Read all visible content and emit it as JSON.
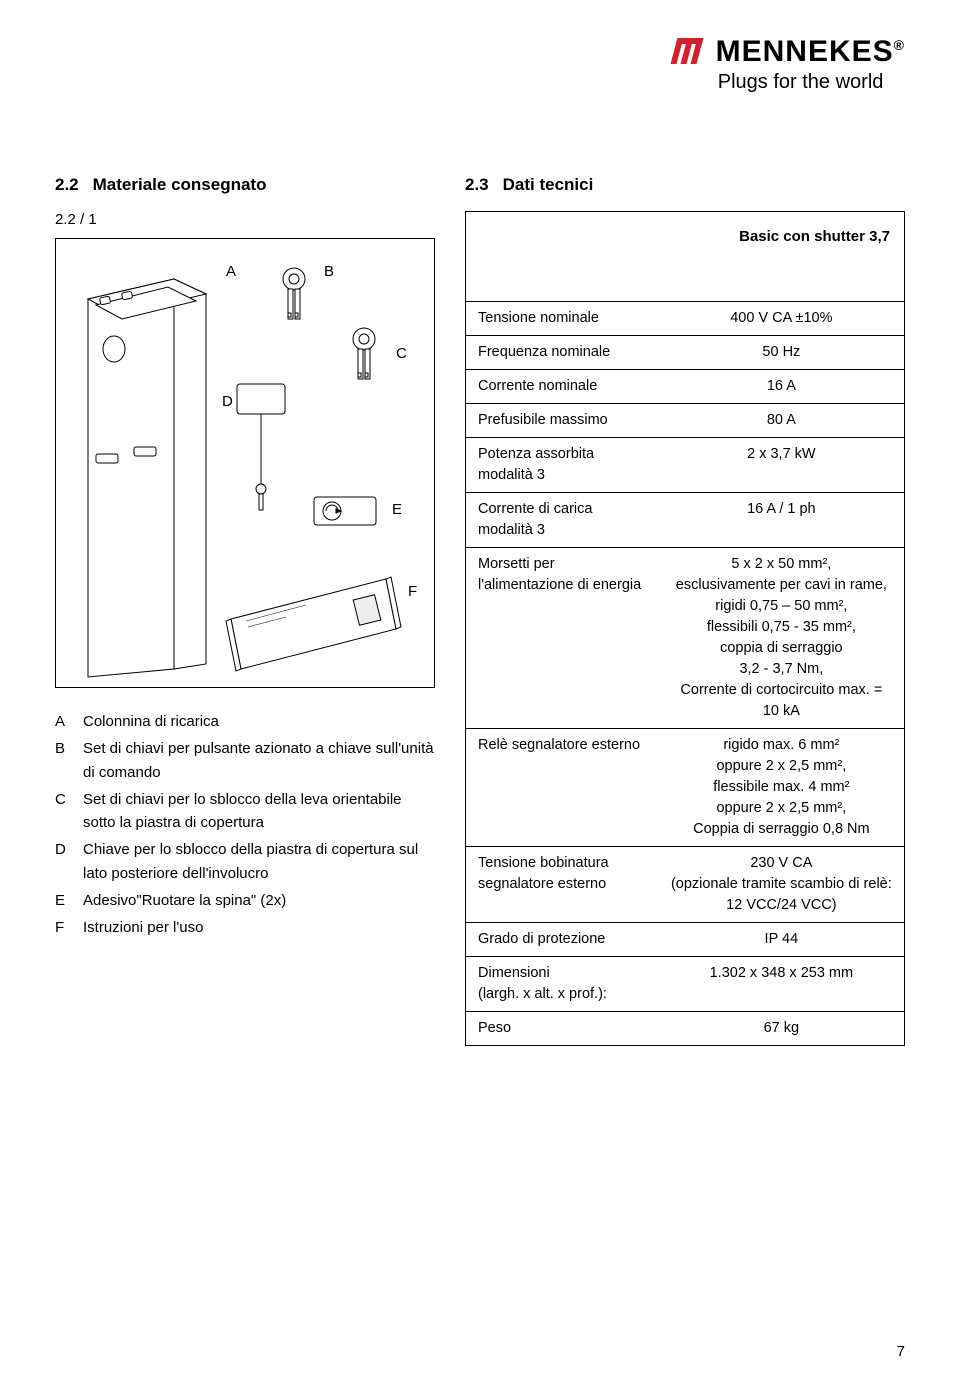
{
  "brand": {
    "name": "MENNEKES",
    "tagline": "Plugs for the world",
    "logo_color": "#d3202c"
  },
  "sections": {
    "left_num": "2.2",
    "left_title": "Materiale consegnato",
    "left_sub": "2.2 / 1",
    "right_num": "2.3",
    "right_title": "Dati tecnici"
  },
  "callouts": {
    "A": "A",
    "B": "B",
    "C": "C",
    "D": "D",
    "E": "E",
    "F": "F"
  },
  "legend": [
    {
      "key": "A",
      "text": "Colonnina di ricarica"
    },
    {
      "key": "B",
      "text": "Set di chiavi per pulsante azionato a chiave sull'unità di comando"
    },
    {
      "key": "C",
      "text": "Set di chiavi per lo sblocco della leva orientabile sotto la piastra di copertura"
    },
    {
      "key": "D",
      "text": "Chiave per lo sblocco della piastra di copertura sul lato posteriore dell'involucro"
    },
    {
      "key": "E",
      "text": "Adesivo\"Ruotare la spina\" (2x)"
    },
    {
      "key": "F",
      "text": "Istruzioni per l'uso"
    }
  ],
  "spec": {
    "title": "Basic con shutter 3,7",
    "rows": [
      {
        "label": "Tensione nominale",
        "value": "400 V CA ±10%"
      },
      {
        "label": "Frequenza nominale",
        "value": "50 Hz"
      },
      {
        "label": "Corrente nominale",
        "value": "16 A"
      },
      {
        "label": "Prefusibile massimo",
        "value": "80 A"
      },
      {
        "label": "Potenza assorbita\nmodalità 3",
        "value": "2 x 3,7 kW"
      },
      {
        "label": "Corrente di carica\nmodalità 3",
        "value": "16 A / 1 ph"
      },
      {
        "label": "Morsetti per l'alimentazione di energia",
        "value": "5 x 2 x 50 mm²,\nesclusivamente per cavi in rame,\nrigidi 0,75 – 50 mm²,\nflessibili 0,75 - 35 mm²,\ncoppia di serraggio\n3,2 - 3,7 Nm,\nCorrente di cortocircuito max. = 10 kA"
      },
      {
        "label": "Relè segnalatore esterno",
        "value": "rigido max. 6 mm²\noppure 2 x 2,5 mm²,\nflessibile max. 4 mm²\noppure 2 x 2,5 mm²,\nCoppia di serraggio 0,8 Nm"
      },
      {
        "label": "Tensione bobinatura segnalatore esterno",
        "value": "230 V CA\n(opzionale tramite scambio di relè: 12 VCC/24 VCC)"
      },
      {
        "label": "Grado di protezione",
        "value": "IP 44"
      },
      {
        "label": "Dimensioni\n(largh. x alt. x prof.):",
        "value": "1.302 x 348 x 253 mm"
      },
      {
        "label": "Peso",
        "value": "67 kg"
      }
    ]
  },
  "page_number": "7"
}
